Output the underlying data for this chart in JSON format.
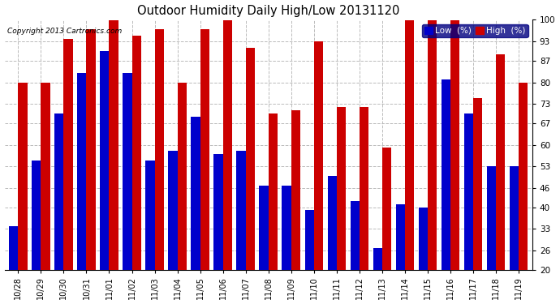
{
  "title": "Outdoor Humidity Daily High/Low 20131120",
  "copyright": "Copyright 2013 Cartronics.com",
  "legend_labels": [
    "Low  (%)",
    "High  (%)"
  ],
  "legend_colors": [
    "#0000cc",
    "#cc0000"
  ],
  "background_color": "#ffffff",
  "plot_background": "#ffffff",
  "grid_color": "#bbbbbb",
  "ylim": [
    20,
    100
  ],
  "ybase": 20,
  "yticks": [
    20,
    26,
    33,
    40,
    46,
    53,
    60,
    67,
    73,
    80,
    87,
    93,
    100
  ],
  "categories": [
    "10/28",
    "10/29",
    "10/30",
    "10/31",
    "11/01",
    "11/02",
    "11/03",
    "11/04",
    "11/05",
    "11/06",
    "11/07",
    "11/08",
    "11/09",
    "11/10",
    "11/11",
    "11/12",
    "11/13",
    "11/14",
    "11/15",
    "11/16",
    "11/17",
    "11/18",
    "11/19"
  ],
  "low_values": [
    34,
    55,
    70,
    83,
    90,
    83,
    55,
    58,
    69,
    57,
    58,
    47,
    47,
    39,
    50,
    42,
    27,
    41,
    40,
    81,
    70,
    53,
    53
  ],
  "high_values": [
    80,
    80,
    94,
    97,
    100,
    95,
    97,
    80,
    97,
    100,
    91,
    70,
    71,
    93,
    72,
    72,
    59,
    100,
    100,
    100,
    75,
    89,
    80
  ]
}
